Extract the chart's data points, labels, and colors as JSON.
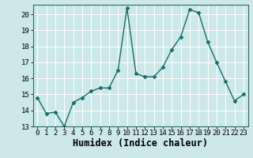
{
  "x": [
    0,
    1,
    2,
    3,
    4,
    5,
    6,
    7,
    8,
    9,
    10,
    11,
    12,
    13,
    14,
    15,
    16,
    17,
    18,
    19,
    20,
    21,
    22,
    23
  ],
  "y": [
    14.8,
    13.8,
    13.9,
    13.0,
    14.5,
    14.8,
    15.2,
    15.4,
    15.4,
    16.5,
    20.4,
    16.3,
    16.1,
    16.1,
    16.7,
    17.8,
    18.6,
    20.3,
    20.1,
    18.3,
    17.0,
    15.8,
    14.6,
    15.0
  ],
  "xlabel": "Humidex (Indice chaleur)",
  "ylim": [
    13,
    20.6
  ],
  "xlim": [
    -0.5,
    23.5
  ],
  "yticks": [
    13,
    14,
    15,
    16,
    17,
    18,
    19,
    20
  ],
  "xticks": [
    0,
    1,
    2,
    3,
    4,
    5,
    6,
    7,
    8,
    9,
    10,
    11,
    12,
    13,
    14,
    15,
    16,
    17,
    18,
    19,
    20,
    21,
    22,
    23
  ],
  "line_color": "#1a6b6b",
  "marker_color": "#1a6b6b",
  "bg_color": "#cce8e8",
  "grid_color": "#ffffff",
  "tick_label_fontsize": 6.5,
  "xlabel_fontsize": 8.5
}
